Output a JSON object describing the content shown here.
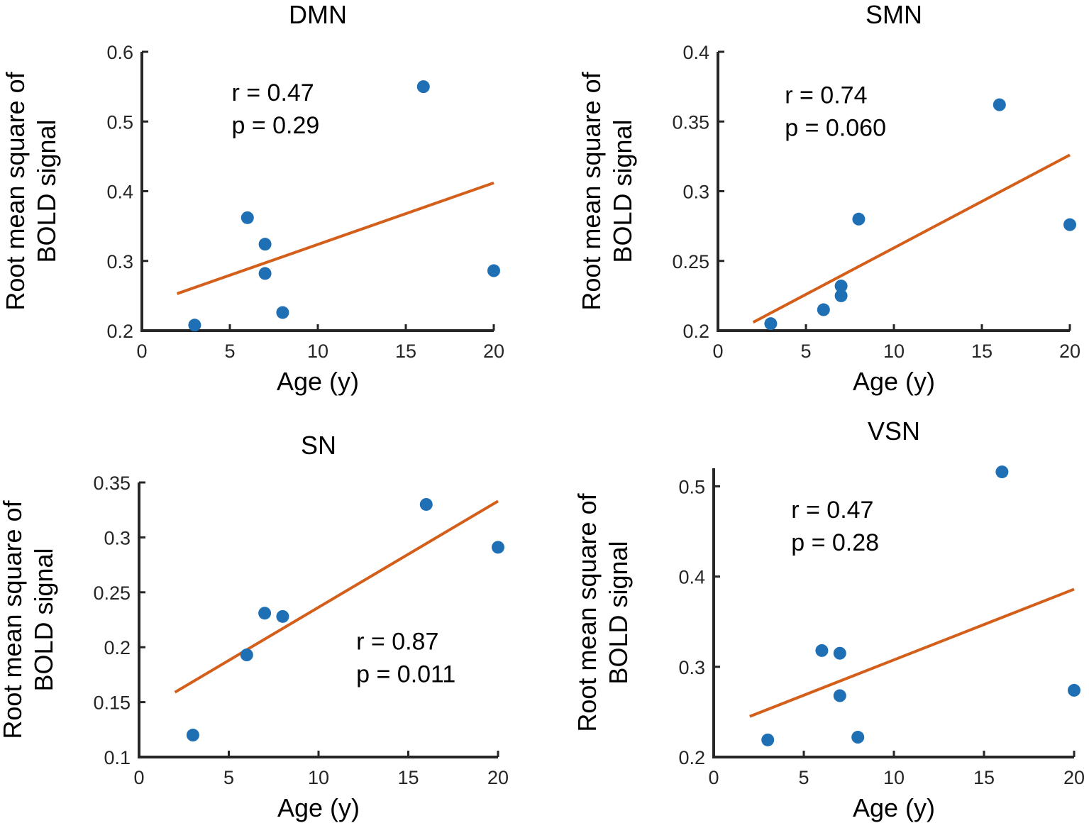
{
  "chart_data": [
    {
      "type": "scatter",
      "title": "DMN",
      "xlabel": "Age (y)",
      "ylabel": [
        "Root mean square of",
        "BOLD signal"
      ],
      "xlim": [
        0,
        20
      ],
      "ylim": [
        0.2,
        0.6
      ],
      "xticks": [
        0,
        5,
        10,
        15,
        20
      ],
      "xtick_labels": [
        "0",
        "5",
        "10",
        "15",
        "20"
      ],
      "yticks": [
        0.2,
        0.3,
        0.4,
        0.5,
        0.6
      ],
      "ytick_labels": [
        "0.2",
        "0.3",
        "0.4",
        "0.5",
        "0.6"
      ],
      "points": [
        {
          "x": 3,
          "y": 0.208
        },
        {
          "x": 6,
          "y": 0.362
        },
        {
          "x": 7,
          "y": 0.324
        },
        {
          "x": 7,
          "y": 0.282
        },
        {
          "x": 8,
          "y": 0.226
        },
        {
          "x": 16,
          "y": 0.55
        },
        {
          "x": 20,
          "y": 0.286
        }
      ],
      "fit_line": {
        "x": [
          2,
          20
        ],
        "y": [
          0.253,
          0.412
        ]
      },
      "annotation": [
        "r = 0.47",
        "p = 0.29"
      ],
      "annotation_anchor": {
        "x": 5.1,
        "y": 0.53
      }
    },
    {
      "type": "scatter",
      "title": "SMN",
      "xlabel": "Age (y)",
      "ylabel": [
        "Root mean square of",
        "BOLD signal"
      ],
      "xlim": [
        0,
        20
      ],
      "ylim": [
        0.2,
        0.4
      ],
      "xticks": [
        0,
        5,
        10,
        15,
        20
      ],
      "xtick_labels": [
        "0",
        "5",
        "10",
        "15",
        "20"
      ],
      "yticks": [
        0.2,
        0.25,
        0.3,
        0.35,
        0.4
      ],
      "ytick_labels": [
        "0.2",
        "0.25",
        "0.3",
        "0.35",
        "0.4"
      ],
      "points": [
        {
          "x": 3,
          "y": 0.205
        },
        {
          "x": 6,
          "y": 0.215
        },
        {
          "x": 7,
          "y": 0.232
        },
        {
          "x": 7,
          "y": 0.225
        },
        {
          "x": 8,
          "y": 0.28
        },
        {
          "x": 16,
          "y": 0.362
        },
        {
          "x": 20,
          "y": 0.276
        }
      ],
      "fit_line": {
        "x": [
          2,
          20
        ],
        "y": [
          0.206,
          0.326
        ]
      },
      "annotation": [
        "r = 0.74",
        "p = 0.060"
      ],
      "annotation_anchor": {
        "x": 3.8,
        "y": 0.363
      }
    },
    {
      "type": "scatter",
      "title": "SN",
      "xlabel": "Age (y)",
      "ylabel": [
        "Root mean square of",
        "BOLD signal"
      ],
      "xlim": [
        0,
        20
      ],
      "ylim": [
        0.1,
        0.35
      ],
      "xticks": [
        0,
        5,
        10,
        15,
        20
      ],
      "xtick_labels": [
        "0",
        "5",
        "10",
        "15",
        "20"
      ],
      "yticks": [
        0.1,
        0.15,
        0.2,
        0.25,
        0.3,
        0.35
      ],
      "ytick_labels": [
        "0.1",
        "0.15",
        "0.2",
        "0.25",
        "0.3",
        "0.35"
      ],
      "points": [
        {
          "x": 3,
          "y": 0.12
        },
        {
          "x": 6,
          "y": 0.193
        },
        {
          "x": 7,
          "y": 0.231
        },
        {
          "x": 8,
          "y": 0.228
        },
        {
          "x": 16,
          "y": 0.33
        },
        {
          "x": 20,
          "y": 0.291
        }
      ],
      "fit_line": {
        "x": [
          2,
          20
        ],
        "y": [
          0.159,
          0.333
        ]
      },
      "annotation": [
        "r = 0.87",
        "p = 0.011"
      ],
      "annotation_anchor": {
        "x": 12.1,
        "y": 0.198
      }
    },
    {
      "type": "scatter",
      "title": "VSN",
      "xlabel": "Age (y)",
      "ylabel": [
        "Root mean square of",
        "BOLD signal"
      ],
      "xlim": [
        0,
        20
      ],
      "ylim": [
        0.2,
        0.52
      ],
      "xticks": [
        0,
        5,
        10,
        15,
        20
      ],
      "xtick_labels": [
        "0",
        "5",
        "10",
        "15",
        "20"
      ],
      "yticks": [
        0.2,
        0.3,
        0.4,
        0.5
      ],
      "ytick_labels": [
        "0.2",
        "0.3",
        "0.4",
        "0.5"
      ],
      "points": [
        {
          "x": 3,
          "y": 0.219
        },
        {
          "x": 6,
          "y": 0.318
        },
        {
          "x": 7,
          "y": 0.315
        },
        {
          "x": 7,
          "y": 0.268
        },
        {
          "x": 8,
          "y": 0.222
        },
        {
          "x": 16,
          "y": 0.516
        },
        {
          "x": 20,
          "y": 0.274
        }
      ],
      "fit_line": {
        "x": [
          2,
          20
        ],
        "y": [
          0.245,
          0.386
        ]
      },
      "annotation": [
        "r = 0.47",
        "p = 0.28"
      ],
      "annotation_anchor": {
        "x": 4.3,
        "y": 0.465
      }
    }
  ],
  "colors": {
    "marker": "#1f6fb5",
    "fit": "#d35f1a",
    "axis": "#262626"
  }
}
